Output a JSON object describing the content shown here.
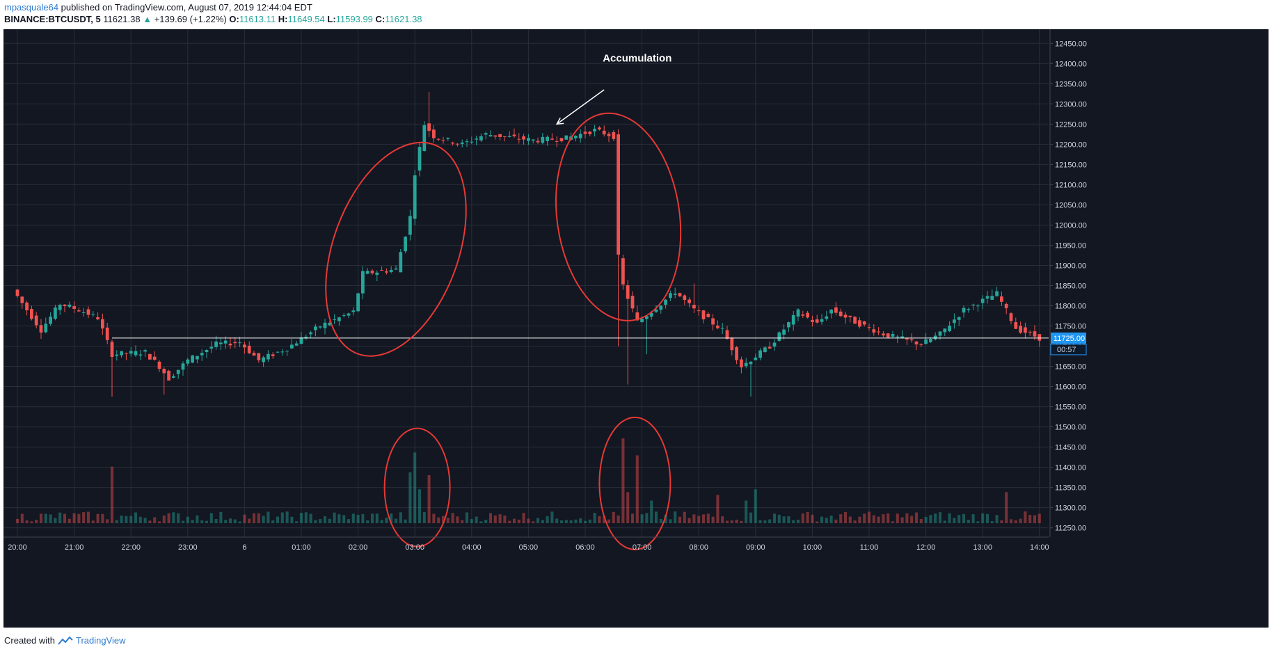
{
  "header": {
    "author": "mpasquale64",
    "published_text": " published on TradingView.com, August 07, 2019 12:44:04 EDT",
    "symbol": "BINANCE:BTCUSDT, 5",
    "last_price": "11621.38",
    "change": "+139.69 (+1.22%)",
    "o_label": "O:",
    "o_value": "11613.11",
    "h_label": "H:",
    "h_value": "11649.54",
    "l_label": "L:",
    "l_value": "11593.99",
    "c_label": "C:",
    "c_value": "11621.38"
  },
  "footer": {
    "created_with": "Created with",
    "brand": "TradingView"
  },
  "colors": {
    "bg": "#131722",
    "up": "#26a69a",
    "down": "#ef5350",
    "grid": "#2a2e39",
    "axis_text": "#d1d4dc",
    "annotation": "#e53935",
    "price_tag": "#2196f3"
  },
  "chart_data": {
    "type": "candlestick",
    "title": "",
    "y_ticks": [
      11250,
      11300,
      11350,
      11400,
      11450,
      11500,
      11550,
      11600,
      11650,
      11700,
      11750,
      11800,
      11850,
      11900,
      11950,
      12000,
      12050,
      12100,
      12150,
      12200,
      12250,
      12300,
      12350,
      12400,
      12450
    ],
    "y_tick_labels": [
      "11250.00",
      "11300.00",
      "11350.00",
      "11400.00",
      "11450.00",
      "11500.00",
      "11550.00",
      "11600.00",
      "11650.00",
      "11700.00",
      "11750.00",
      "11800.00",
      "11850.00",
      "11900.00",
      "11950.00",
      "12000.00",
      "12050.00",
      "12100.00",
      "12150.00",
      "12200.00",
      "12250.00",
      "12300.00",
      "12350.00",
      "12400.00",
      "12450.00"
    ],
    "ylim": [
      11227,
      12485
    ],
    "x_ticks": [
      "20:00",
      "21:00",
      "22:00",
      "23:00",
      "6",
      "01:00",
      "02:00",
      "03:00",
      "04:00",
      "05:00",
      "06:00",
      "07:00",
      "08:00",
      "09:00",
      "10:00",
      "11:00",
      "12:00",
      "13:00",
      "14:00"
    ],
    "bars_per_tick": 12,
    "horizontal_line": 11720,
    "price_tag": "11725.00",
    "countdown_tag": "00:57",
    "annotation_text": "Accumulation",
    "price_path": [
      {
        "i": 0,
        "p": 11840
      },
      {
        "i": 6,
        "p": 11740
      },
      {
        "i": 10,
        "p": 11805
      },
      {
        "i": 14,
        "p": 11790
      },
      {
        "i": 18,
        "p": 11770
      },
      {
        "i": 21,
        "p": 11680
      },
      {
        "i": 28,
        "p": 11685
      },
      {
        "i": 31,
        "p": 11650
      },
      {
        "i": 33,
        "p": 11620
      },
      {
        "i": 37,
        "p": 11665
      },
      {
        "i": 43,
        "p": 11705
      },
      {
        "i": 48,
        "p": 11710
      },
      {
        "i": 52,
        "p": 11665
      },
      {
        "i": 58,
        "p": 11695
      },
      {
        "i": 65,
        "p": 11750
      },
      {
        "i": 72,
        "p": 11785
      },
      {
        "i": 74,
        "p": 11880
      },
      {
        "i": 81,
        "p": 11890
      },
      {
        "i": 84,
        "p": 12020
      },
      {
        "i": 85,
        "p": 12130
      },
      {
        "i": 87,
        "p": 12250
      },
      {
        "i": 89,
        "p": 12220
      },
      {
        "i": 95,
        "p": 12200
      },
      {
        "i": 100,
        "p": 12225
      },
      {
        "i": 110,
        "p": 12210
      },
      {
        "i": 117,
        "p": 12215
      },
      {
        "i": 123,
        "p": 12235
      },
      {
        "i": 127,
        "p": 12220
      },
      {
        "i": 128,
        "p": 11920
      },
      {
        "i": 129,
        "p": 11850
      },
      {
        "i": 132,
        "p": 11760
      },
      {
        "i": 137,
        "p": 11805
      },
      {
        "i": 140,
        "p": 11835
      },
      {
        "i": 144,
        "p": 11790
      },
      {
        "i": 150,
        "p": 11740
      },
      {
        "i": 154,
        "p": 11650
      },
      {
        "i": 160,
        "p": 11700
      },
      {
        "i": 166,
        "p": 11785
      },
      {
        "i": 170,
        "p": 11755
      },
      {
        "i": 173,
        "p": 11790
      },
      {
        "i": 178,
        "p": 11760
      },
      {
        "i": 184,
        "p": 11730
      },
      {
        "i": 192,
        "p": 11705
      },
      {
        "i": 196,
        "p": 11730
      },
      {
        "i": 201,
        "p": 11790
      },
      {
        "i": 208,
        "p": 11830
      },
      {
        "i": 212,
        "p": 11745
      },
      {
        "i": 218,
        "p": 11715
      },
      {
        "i": 220,
        "p": 11721
      }
    ],
    "wicks": [
      {
        "i": 20,
        "low": 11575
      },
      {
        "i": 31,
        "low": 11580
      },
      {
        "i": 87,
        "high": 12330
      },
      {
        "i": 127,
        "low": 11700
      },
      {
        "i": 129,
        "low": 11605
      },
      {
        "i": 133,
        "low": 11680
      },
      {
        "i": 155,
        "low": 11575
      },
      {
        "i": 143,
        "high": 11855
      }
    ],
    "volume_spikes": [
      {
        "i": 20,
        "v": 1.0
      },
      {
        "i": 83,
        "v": 0.9
      },
      {
        "i": 84,
        "v": 1.25
      },
      {
        "i": 87,
        "v": 0.85
      },
      {
        "i": 85,
        "v": 0.6
      },
      {
        "i": 128,
        "v": 1.5
      },
      {
        "i": 129,
        "v": 0.55
      },
      {
        "i": 131,
        "v": 1.2
      },
      {
        "i": 134,
        "v": 0.4
      },
      {
        "i": 148,
        "v": 0.5
      },
      {
        "i": 154,
        "v": 0.4
      },
      {
        "i": 156,
        "v": 0.6
      },
      {
        "i": 209,
        "v": 0.55
      }
    ],
    "volume_ylim": [
      0,
      1.6
    ]
  }
}
